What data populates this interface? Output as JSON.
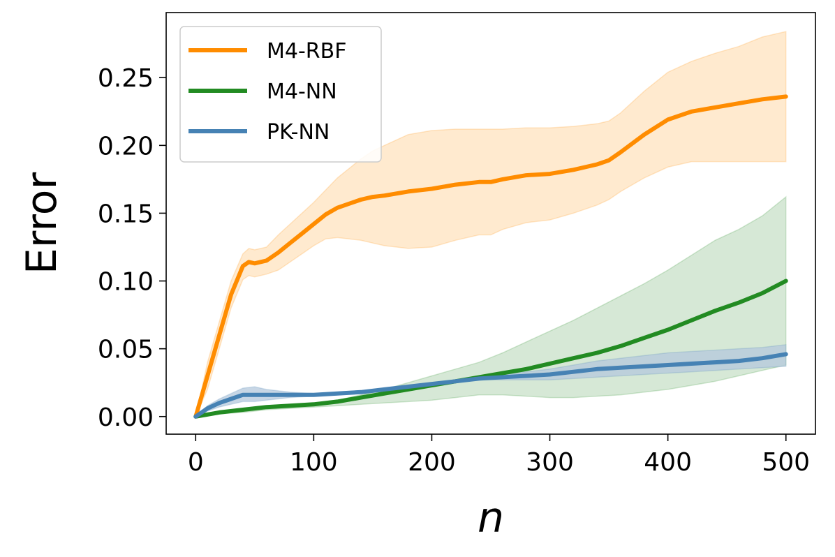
{
  "chart_data": {
    "type": "line",
    "xlabel": "n",
    "ylabel": "Error",
    "xlim": [
      -25,
      525
    ],
    "ylim": [
      -0.013,
      0.298
    ],
    "xticks": [
      0,
      100,
      200,
      300,
      400,
      500
    ],
    "yticks": [
      0.0,
      0.05,
      0.1,
      0.15,
      0.2,
      0.25
    ],
    "xtick_labels": [
      "0",
      "100",
      "200",
      "300",
      "400",
      "500"
    ],
    "ytick_labels": [
      "0.00",
      "0.05",
      "0.10",
      "0.15",
      "0.20",
      "0.25"
    ],
    "grid": false,
    "legend_position": "top-left",
    "series": [
      {
        "name": "M4-RBF",
        "color": "#ff8c00",
        "band_color": "#ffe3bf",
        "x": [
          0,
          10,
          20,
          30,
          40,
          45,
          50,
          60,
          70,
          80,
          90,
          100,
          110,
          120,
          130,
          140,
          150,
          160,
          180,
          200,
          220,
          240,
          250,
          260,
          280,
          300,
          320,
          340,
          350,
          360,
          380,
          400,
          420,
          440,
          460,
          480,
          500
        ],
        "y": [
          0.0,
          0.03,
          0.06,
          0.09,
          0.111,
          0.114,
          0.113,
          0.115,
          0.121,
          0.128,
          0.135,
          0.142,
          0.149,
          0.154,
          0.157,
          0.16,
          0.162,
          0.163,
          0.166,
          0.168,
          0.171,
          0.173,
          0.173,
          0.175,
          0.178,
          0.179,
          0.182,
          0.186,
          0.189,
          0.195,
          0.208,
          0.219,
          0.225,
          0.228,
          0.231,
          0.234,
          0.236
        ],
        "upper": [
          0.0,
          0.04,
          0.07,
          0.1,
          0.12,
          0.124,
          0.123,
          0.125,
          0.134,
          0.142,
          0.15,
          0.158,
          0.167,
          0.176,
          0.183,
          0.19,
          0.196,
          0.2,
          0.208,
          0.211,
          0.212,
          0.212,
          0.212,
          0.212,
          0.213,
          0.213,
          0.214,
          0.216,
          0.218,
          0.224,
          0.24,
          0.254,
          0.262,
          0.268,
          0.273,
          0.28,
          0.284
        ],
        "lower": [
          0.0,
          0.02,
          0.05,
          0.08,
          0.101,
          0.104,
          0.103,
          0.105,
          0.108,
          0.114,
          0.12,
          0.126,
          0.131,
          0.132,
          0.131,
          0.13,
          0.128,
          0.126,
          0.124,
          0.125,
          0.13,
          0.134,
          0.134,
          0.138,
          0.143,
          0.145,
          0.15,
          0.156,
          0.16,
          0.166,
          0.176,
          0.184,
          0.188,
          0.188,
          0.188,
          0.188,
          0.188
        ]
      },
      {
        "name": "M4-NN",
        "color": "#228b22",
        "band_color": "#c8e0c8",
        "x": [
          0,
          20,
          40,
          50,
          60,
          80,
          100,
          120,
          140,
          160,
          180,
          200,
          220,
          240,
          260,
          280,
          300,
          320,
          340,
          360,
          380,
          400,
          420,
          440,
          460,
          480,
          500
        ],
        "y": [
          0.0,
          0.003,
          0.005,
          0.006,
          0.007,
          0.008,
          0.009,
          0.011,
          0.014,
          0.017,
          0.02,
          0.023,
          0.026,
          0.029,
          0.032,
          0.035,
          0.039,
          0.043,
          0.047,
          0.052,
          0.058,
          0.064,
          0.071,
          0.078,
          0.084,
          0.091,
          0.1
        ],
        "upper": [
          0.0,
          0.004,
          0.006,
          0.007,
          0.008,
          0.009,
          0.01,
          0.012,
          0.016,
          0.02,
          0.025,
          0.03,
          0.035,
          0.04,
          0.047,
          0.055,
          0.063,
          0.071,
          0.08,
          0.089,
          0.098,
          0.108,
          0.119,
          0.13,
          0.138,
          0.148,
          0.162
        ],
        "lower": [
          0.0,
          0.002,
          0.003,
          0.004,
          0.005,
          0.006,
          0.007,
          0.008,
          0.009,
          0.01,
          0.011,
          0.012,
          0.014,
          0.016,
          0.016,
          0.015,
          0.014,
          0.014,
          0.015,
          0.016,
          0.018,
          0.02,
          0.023,
          0.026,
          0.03,
          0.034,
          0.038
        ]
      },
      {
        "name": "PK-NN",
        "color": "#4682b4",
        "band_color": "#b4c8dc",
        "x": [
          0,
          10,
          20,
          30,
          40,
          50,
          60,
          80,
          100,
          120,
          140,
          160,
          180,
          200,
          220,
          240,
          260,
          280,
          300,
          320,
          340,
          360,
          380,
          400,
          420,
          440,
          460,
          480,
          500
        ],
        "y": [
          0.0,
          0.006,
          0.01,
          0.013,
          0.016,
          0.016,
          0.016,
          0.016,
          0.016,
          0.017,
          0.018,
          0.02,
          0.022,
          0.024,
          0.026,
          0.028,
          0.029,
          0.03,
          0.031,
          0.033,
          0.035,
          0.036,
          0.037,
          0.038,
          0.039,
          0.04,
          0.041,
          0.043,
          0.046
        ],
        "upper": [
          0.0,
          0.008,
          0.013,
          0.017,
          0.021,
          0.022,
          0.02,
          0.018,
          0.017,
          0.018,
          0.019,
          0.021,
          0.023,
          0.025,
          0.027,
          0.029,
          0.031,
          0.033,
          0.035,
          0.038,
          0.041,
          0.043,
          0.045,
          0.047,
          0.048,
          0.049,
          0.05,
          0.051,
          0.053
        ],
        "lower": [
          0.0,
          0.004,
          0.007,
          0.009,
          0.011,
          0.011,
          0.012,
          0.014,
          0.015,
          0.016,
          0.017,
          0.019,
          0.021,
          0.023,
          0.025,
          0.027,
          0.027,
          0.027,
          0.027,
          0.028,
          0.029,
          0.03,
          0.031,
          0.032,
          0.033,
          0.034,
          0.035,
          0.036,
          0.037
        ]
      }
    ]
  }
}
